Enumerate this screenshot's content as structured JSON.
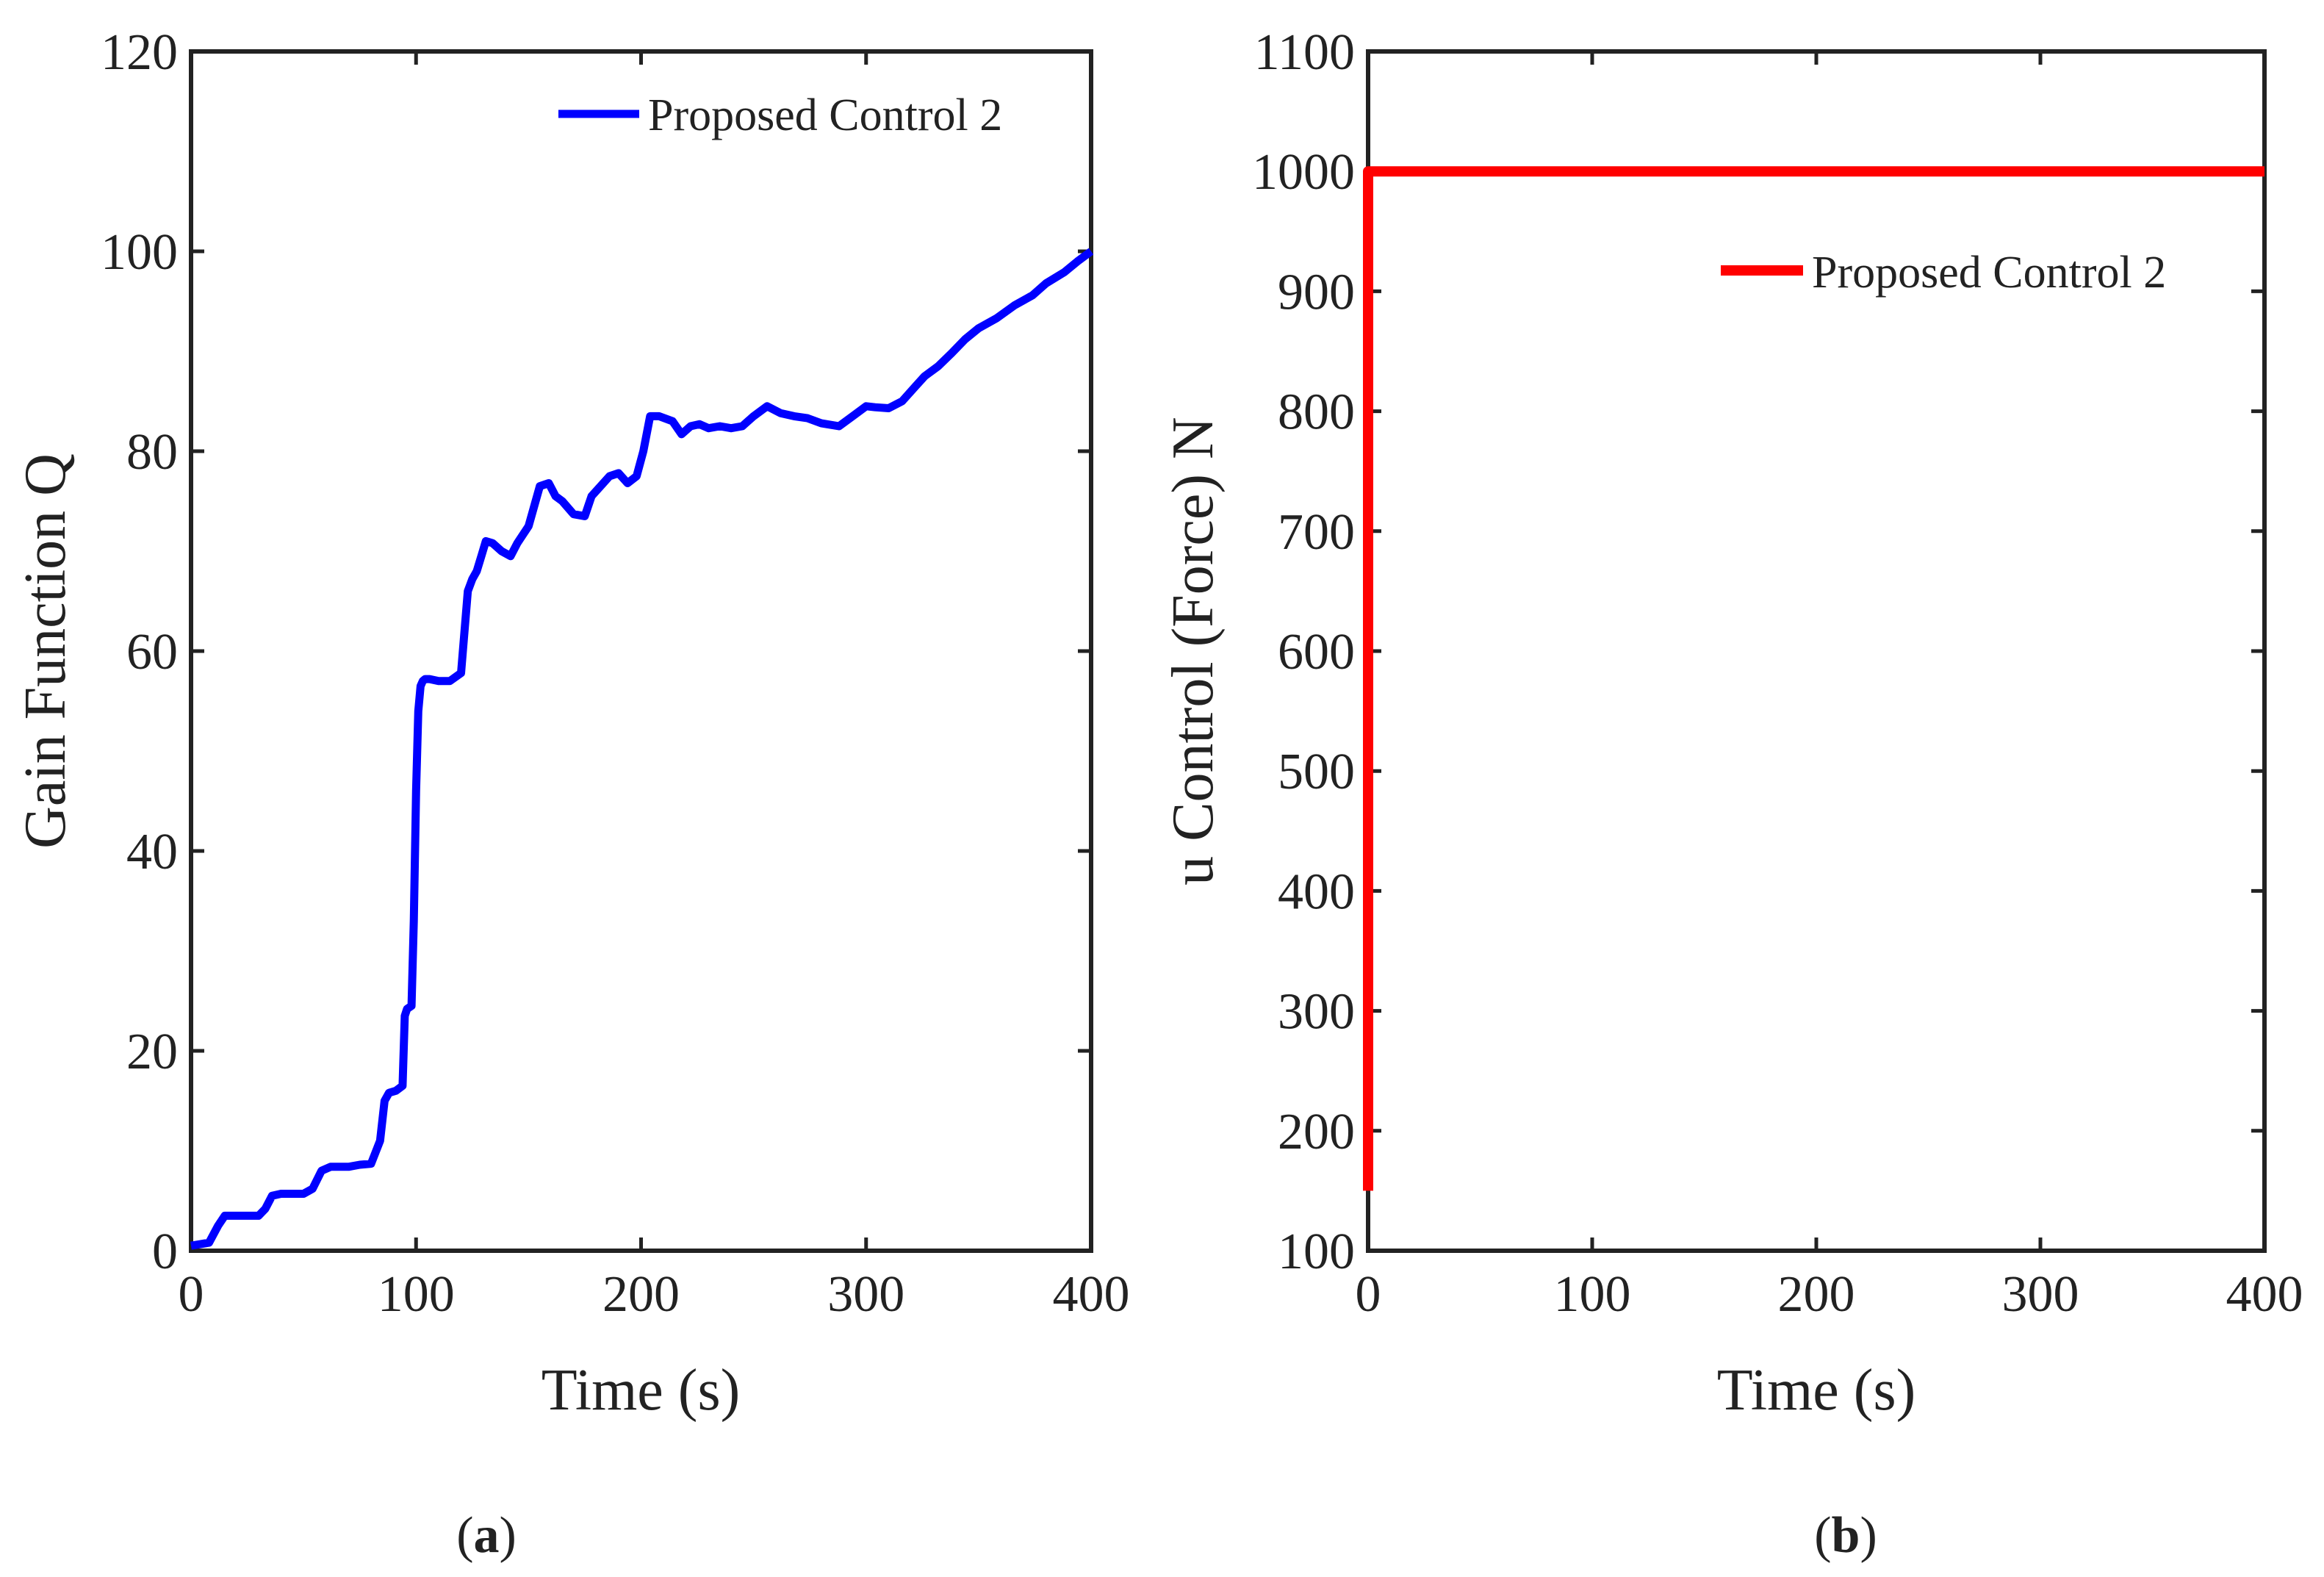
{
  "chart_data": [
    {
      "type": "line",
      "panel_label": "a",
      "xlabel": "Time (s)",
      "ylabel": "Gain Function Q",
      "xlim": [
        0,
        400
      ],
      "ylim": [
        0,
        120
      ],
      "xticks": [
        0,
        100,
        200,
        300,
        400
      ],
      "yticks": [
        0,
        20,
        40,
        60,
        80,
        100,
        120
      ],
      "grid": false,
      "legend_position": "top-right",
      "series": [
        {
          "name": "Proposed Control 2",
          "color": "#0000ff",
          "x": [
            0,
            8,
            12,
            15,
            20,
            30,
            33,
            36,
            40,
            50,
            54,
            58,
            62,
            70,
            75,
            80,
            84,
            86,
            88,
            91,
            94,
            95,
            96,
            98,
            99,
            100,
            101,
            102,
            103,
            104,
            106,
            110,
            115,
            120,
            123,
            125,
            127,
            129,
            131,
            134,
            138,
            142,
            145,
            150,
            155,
            159,
            162,
            165,
            170,
            175,
            178,
            182,
            186,
            190,
            194,
            198,
            201,
            204,
            208,
            214,
            218,
            222,
            226,
            230,
            235,
            240,
            245,
            250,
            256,
            262,
            268,
            274,
            280,
            288,
            294,
            300,
            304,
            310,
            316,
            322,
            326,
            332,
            338,
            344,
            350,
            358,
            366,
            374,
            380,
            388,
            394,
            400
          ],
          "y": [
            0.5,
            0.8,
            2.5,
            3.5,
            3.5,
            3.5,
            4.2,
            5.5,
            5.7,
            5.7,
            6.2,
            8.0,
            8.4,
            8.4,
            8.6,
            8.7,
            11.0,
            15.0,
            15.8,
            16.0,
            16.5,
            23.5,
            24.2,
            24.5,
            33.0,
            46.0,
            54.0,
            56.5,
            57.0,
            57.2,
            57.2,
            57.0,
            57.0,
            57.8,
            66.0,
            67.2,
            68.0,
            69.5,
            71.0,
            70.8,
            70.0,
            69.5,
            70.8,
            72.5,
            76.5,
            76.8,
            75.5,
            75.0,
            73.7,
            73.5,
            75.5,
            76.5,
            77.5,
            77.8,
            76.8,
            77.5,
            80.0,
            83.5,
            83.5,
            83.0,
            81.7,
            82.5,
            82.7,
            82.3,
            82.5,
            82.3,
            82.5,
            83.5,
            84.5,
            83.8,
            83.5,
            83.3,
            82.8,
            82.5,
            83.5,
            84.5,
            84.4,
            84.3,
            85.0,
            86.5,
            87.5,
            88.5,
            89.8,
            91.2,
            92.3,
            93.3,
            94.6,
            95.6,
            96.8,
            97.9,
            99.0,
            100.0
          ]
        }
      ]
    },
    {
      "type": "line",
      "panel_label": "b",
      "xlabel": "Time (s)",
      "ylabel": "u Control (Force) N",
      "xlim": [
        0,
        400
      ],
      "ylim": [
        100,
        1100
      ],
      "xticks": [
        0,
        100,
        200,
        300,
        400
      ],
      "yticks": [
        100,
        200,
        300,
        400,
        500,
        600,
        700,
        800,
        900,
        1000,
        1100
      ],
      "grid": false,
      "legend_position": "top-right",
      "series": [
        {
          "name": "Proposed Control 2",
          "color": "#ff0000",
          "x": [
            0,
            0.01,
            400
          ],
          "y": [
            150,
            1000,
            1000
          ]
        }
      ]
    }
  ]
}
